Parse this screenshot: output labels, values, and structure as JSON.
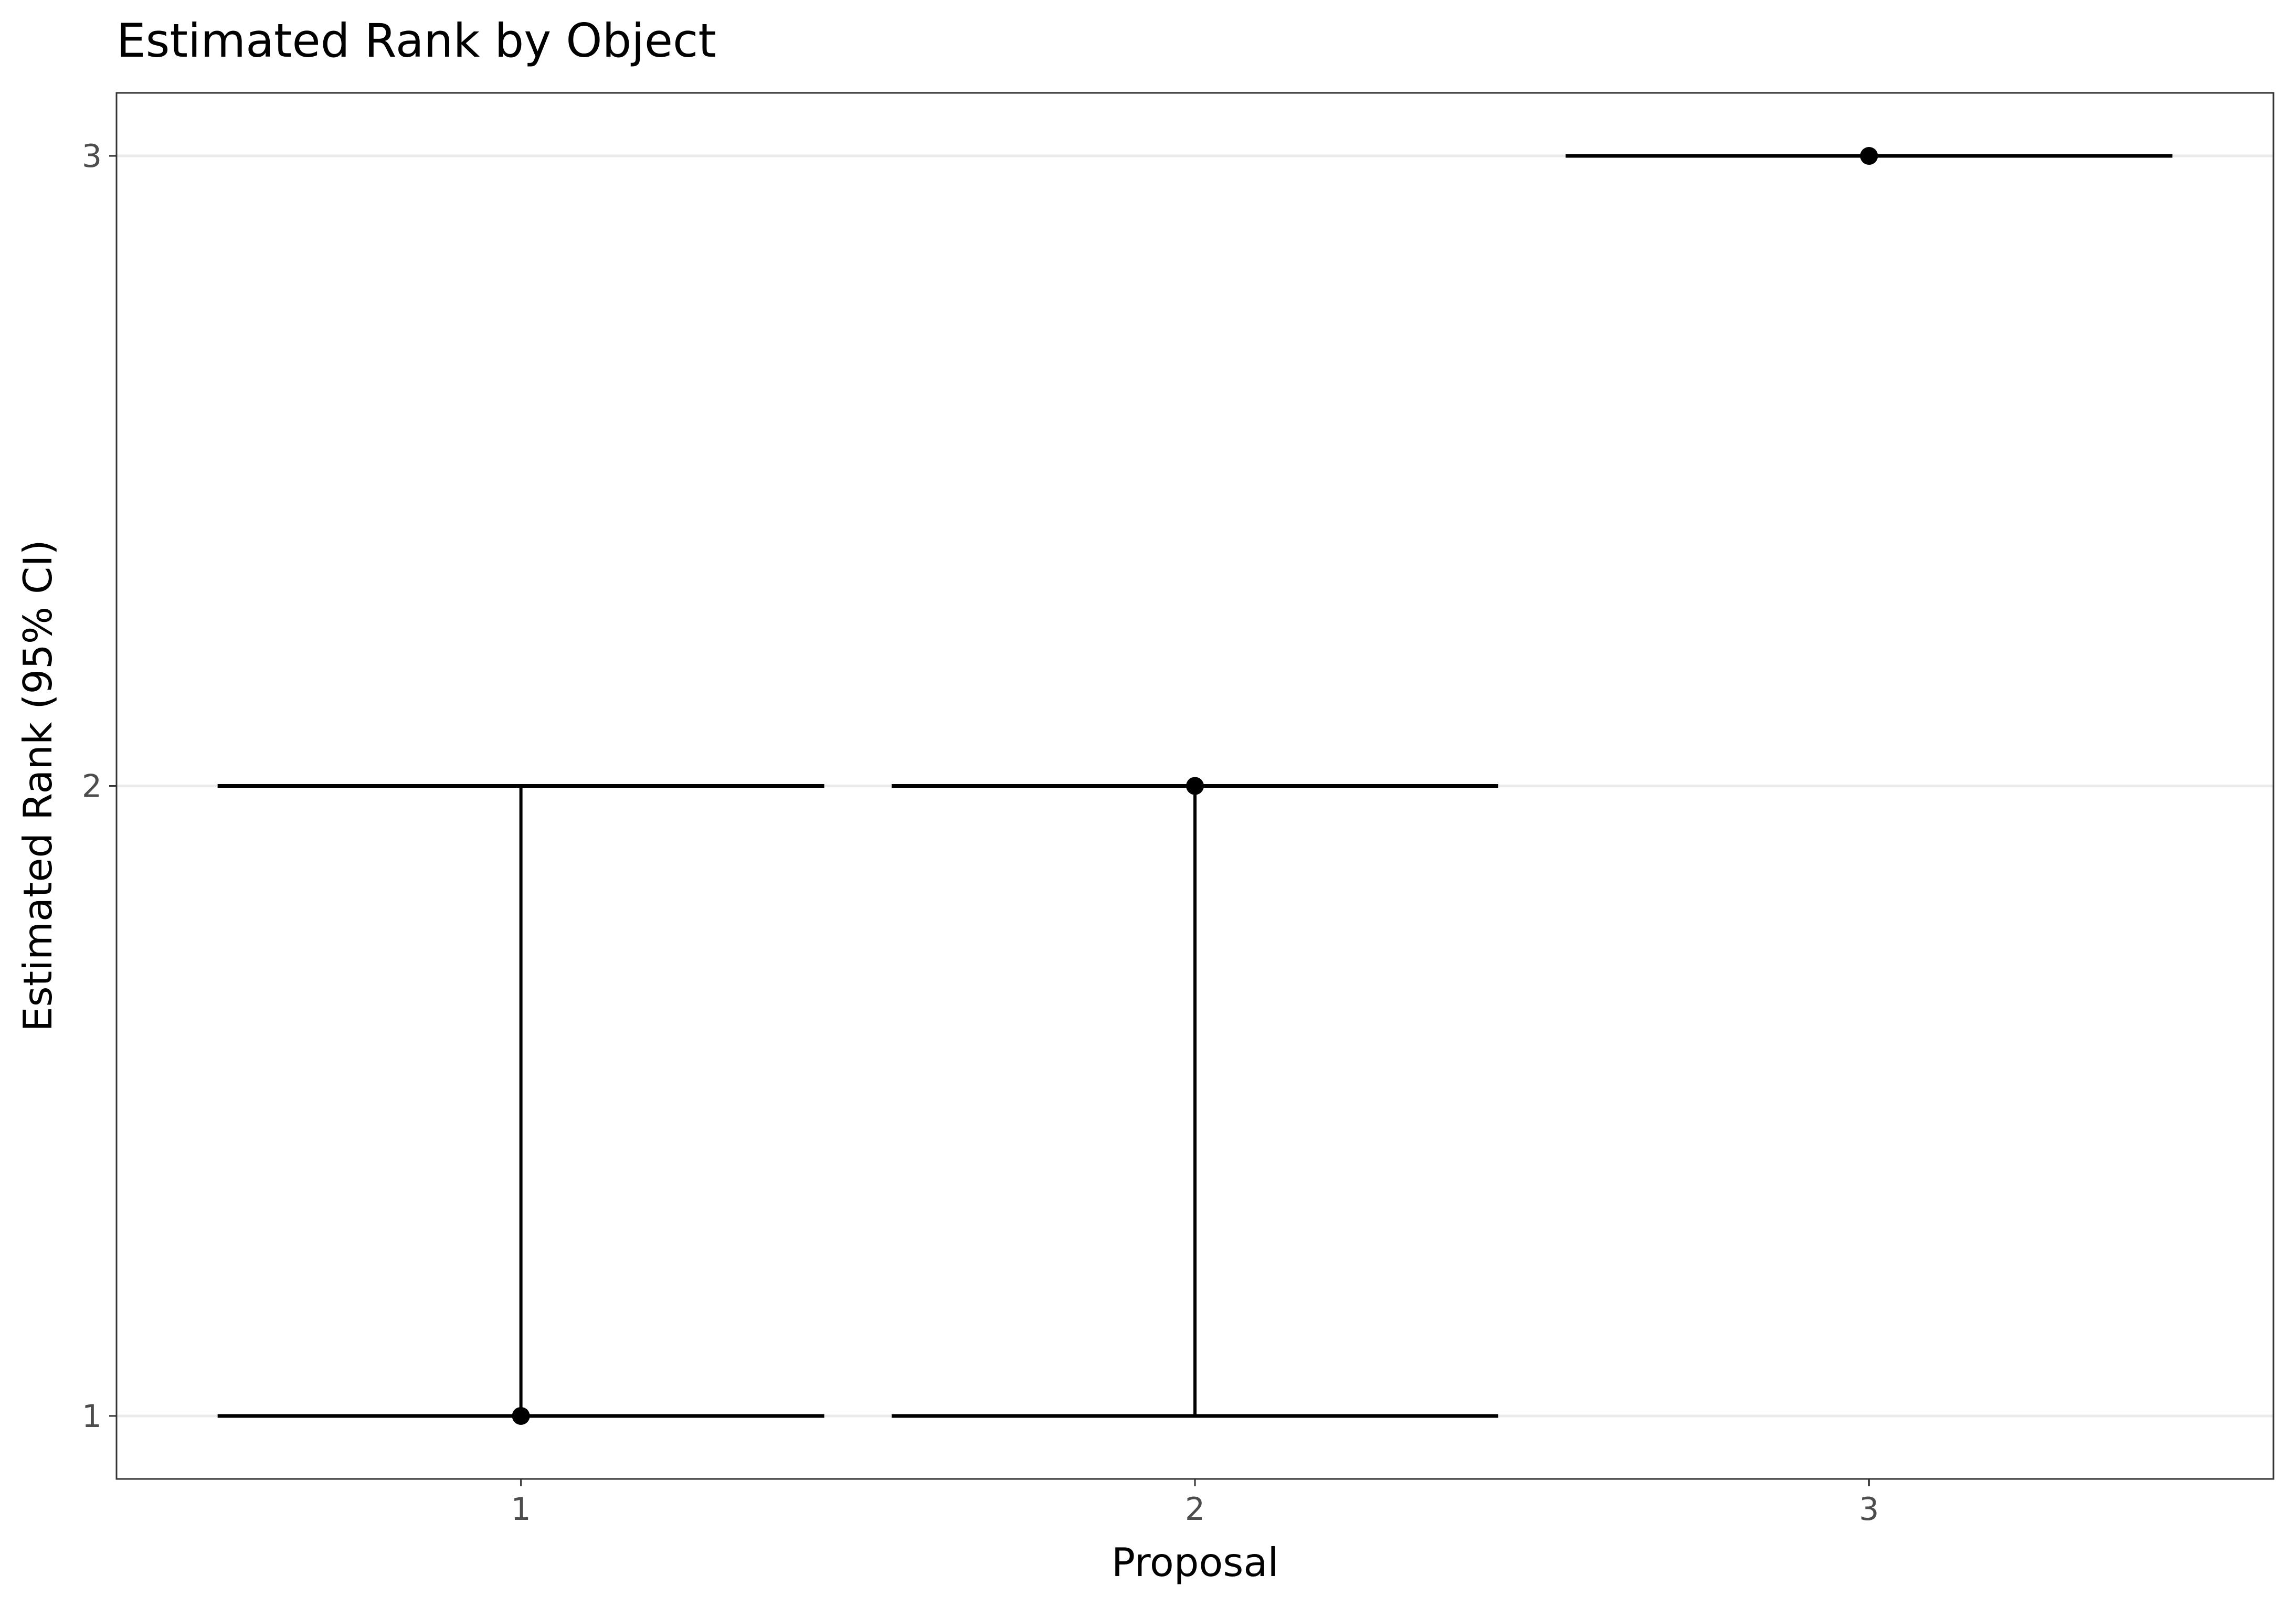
{
  "chart_data": {
    "type": "errorbar",
    "title": "Estimated Rank by Object",
    "xlabel": "Proposal",
    "ylabel": "Estimated Rank (95% CI)",
    "categories": [
      "1",
      "2",
      "3"
    ],
    "points": [
      {
        "x": "1",
        "estimate": 1,
        "lower": 1,
        "upper": 2
      },
      {
        "x": "2",
        "estimate": 2,
        "lower": 1,
        "upper": 2
      },
      {
        "x": "3",
        "estimate": 3,
        "lower": 3,
        "upper": 3
      }
    ],
    "y_ticks": [
      1,
      2,
      3
    ],
    "ylim": [
      0.9,
      3.1
    ],
    "grid": "horizontal-major",
    "colors": {
      "mark": "#000000",
      "grid": "#ebebeb",
      "panel_border": "#333333",
      "tick_label": "#4d4d4d"
    }
  }
}
